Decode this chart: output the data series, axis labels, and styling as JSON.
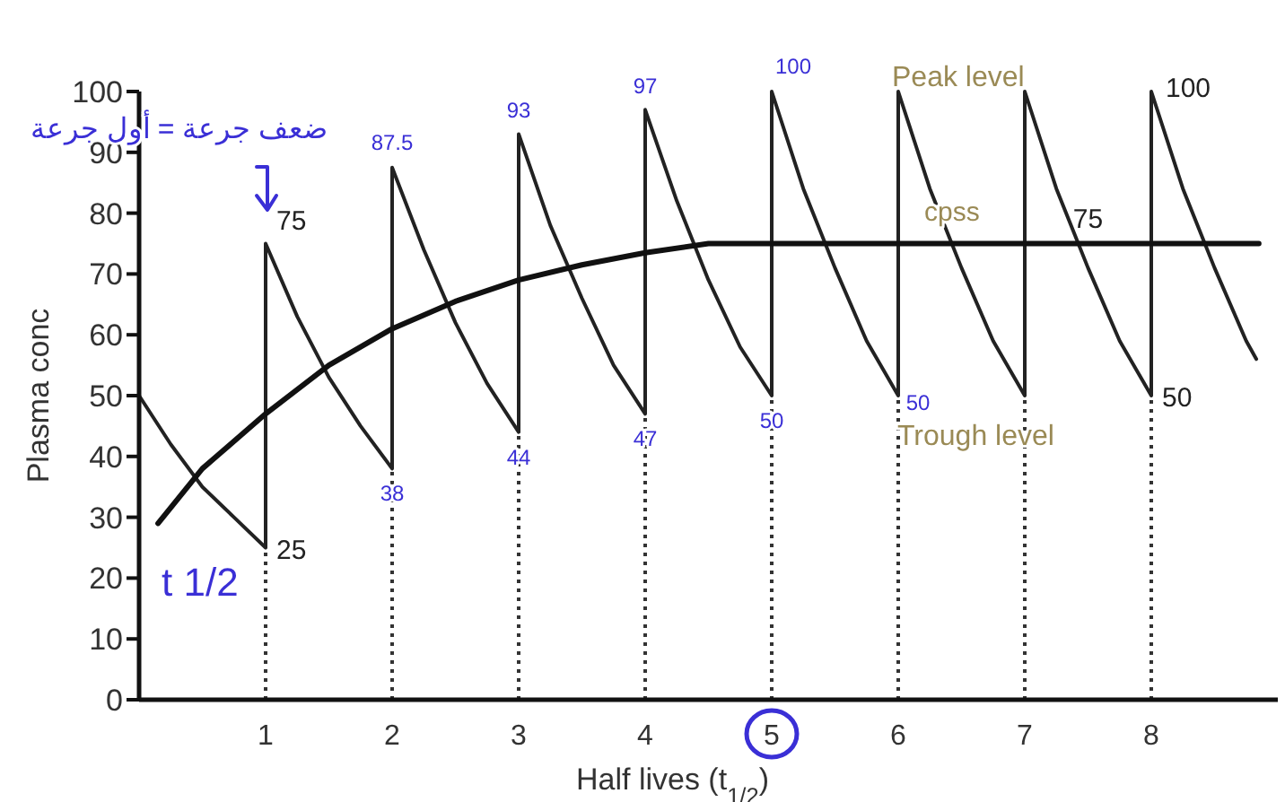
{
  "chart_data": {
    "type": "line",
    "xlabel": "Half lives (t$_{1/2}$)",
    "ylabel": "Plasma conc",
    "xlim": [
      0,
      9
    ],
    "ylim": [
      0,
      100
    ],
    "xticks": [
      1,
      2,
      3,
      4,
      5,
      6,
      7,
      8
    ],
    "yticks": [
      0,
      10,
      20,
      30,
      40,
      50,
      60,
      70,
      80,
      90,
      100
    ],
    "series": [
      {
        "color": "#222222",
        "line_style": "solid",
        "x": [
          0,
          0.25,
          0.5,
          0.75,
          1,
          1,
          1.25,
          1.5,
          1.75,
          2,
          2,
          2.25,
          2.5,
          2.75,
          3,
          3,
          3.25,
          3.5,
          3.75,
          4,
          4,
          4.25,
          4.5,
          4.75,
          5,
          5,
          5.25,
          5.5,
          5.75,
          6,
          6,
          6.25,
          6.5,
          6.75,
          7,
          7,
          7.25,
          7.5,
          7.75,
          8,
          8,
          8.25,
          8.5,
          8.75,
          8.83
        ],
        "values": [
          50,
          42,
          35,
          30,
          25,
          75,
          63,
          53,
          45,
          38,
          87.5,
          74,
          62,
          52,
          44,
          93,
          78,
          66,
          55,
          47,
          97,
          82,
          69,
          58,
          50,
          100,
          84,
          71,
          59,
          50,
          100,
          84,
          71,
          59,
          50,
          100,
          84,
          71,
          59,
          50,
          100,
          84,
          71,
          59,
          56
        ]
      },
      {
        "color": "#111111",
        "line_style": "solid",
        "x": [
          0.15,
          0.5,
          1,
          1.5,
          2,
          2.5,
          3,
          3.5,
          4,
          4.5,
          5,
          6,
          7,
          8,
          8.85
        ],
        "values": [
          29,
          38,
          47,
          55,
          61,
          65.5,
          69,
          71.5,
          73.5,
          75,
          75,
          75,
          75,
          75,
          75
        ]
      },
      {
        "color": "#333333",
        "line_style": "dotted",
        "x": [
          1,
          1
        ],
        "values": [
          0,
          25
        ]
      },
      {
        "color": "#333333",
        "line_style": "dotted",
        "x": [
          2,
          2
        ],
        "values": [
          0,
          38
        ]
      },
      {
        "color": "#333333",
        "line_style": "dotted",
        "x": [
          3,
          3
        ],
        "values": [
          0,
          44
        ]
      },
      {
        "color": "#333333",
        "line_style": "dotted",
        "x": [
          4,
          4
        ],
        "values": [
          0,
          47
        ]
      },
      {
        "color": "#333333",
        "line_style": "dotted",
        "x": [
          5,
          5
        ],
        "values": [
          0,
          50
        ]
      },
      {
        "color": "#333333",
        "line_style": "dotted",
        "x": [
          6,
          6
        ],
        "values": [
          0,
          50
        ]
      },
      {
        "color": "#333333",
        "line_style": "dotted",
        "x": [
          7,
          7
        ],
        "values": [
          0,
          50
        ]
      },
      {
        "color": "#333333",
        "line_style": "dotted",
        "x": [
          8,
          8
        ],
        "values": [
          0,
          50
        ]
      }
    ],
    "annotations": [
      {
        "text": "75",
        "x": 1,
        "y": 75
      },
      {
        "text": "25",
        "x": 1,
        "y": 25
      },
      {
        "text": "100",
        "x": 8,
        "y": 100
      },
      {
        "text": "50",
        "x": 8,
        "y": 50
      },
      {
        "text": "75",
        "x": 7.5,
        "y": 75
      },
      "Peak level",
      "cpss",
      "Trough level",
      {
        "text": "87.5",
        "x": 2,
        "y": 87.5
      },
      {
        "text": "93",
        "x": 3,
        "y": 93
      },
      {
        "text": "97",
        "x": 4,
        "y": 97
      },
      {
        "text": "100",
        "x": 5,
        "y": 100
      },
      {
        "text": "38",
        "x": 2,
        "y": 38
      },
      {
        "text": "44",
        "x": 3,
        "y": 44
      },
      {
        "text": "47",
        "x": 4,
        "y": 47
      },
      {
        "text": "50",
        "x": 5,
        "y": 50
      },
      {
        "text": "50",
        "x": 6,
        "y": 50
      },
      "t 1/2",
      "ضعف جرعة = أول جرعة"
    ]
  }
}
